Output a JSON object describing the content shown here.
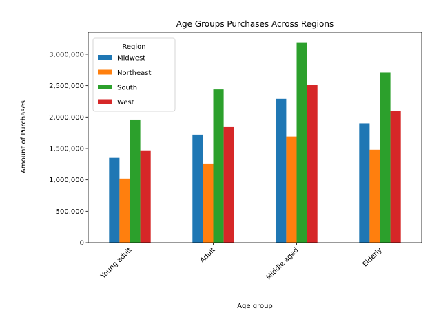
{
  "chart_data": {
    "type": "bar",
    "title": "Age Groups Purchases Across Regions",
    "xlabel": "Age group",
    "ylabel": "Amount of Purchases",
    "categories": [
      "Young adult",
      "Adult",
      "Middle aged",
      "Elderly"
    ],
    "series": [
      {
        "name": "Midwest",
        "color": "#1f77b4",
        "values": [
          1350000,
          1720000,
          2290000,
          1900000
        ]
      },
      {
        "name": "Northeast",
        "color": "#ff7f0e",
        "values": [
          1020000,
          1260000,
          1690000,
          1480000
        ]
      },
      {
        "name": "South",
        "color": "#2ca02c",
        "values": [
          1960000,
          2440000,
          3190000,
          2710000
        ]
      },
      {
        "name": "West",
        "color": "#d62728",
        "values": [
          1470000,
          1840000,
          2510000,
          2100000
        ]
      }
    ],
    "ylim": [
      0,
      3350000
    ],
    "yticks": [
      0,
      500000,
      1000000,
      1500000,
      2000000,
      2500000,
      3000000
    ],
    "ytick_labels": [
      "0",
      "500,000",
      "1,000,000",
      "1,500,000",
      "2,000,000",
      "2,500,000",
      "3,000,000"
    ],
    "legend": {
      "title": "Region",
      "placement": "top-left"
    },
    "grid": false
  }
}
